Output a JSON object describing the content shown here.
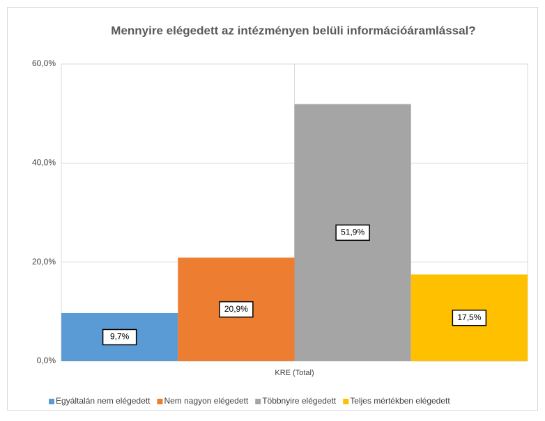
{
  "chart_data": {
    "type": "bar",
    "title": "Mennyire elégedett az intézményen belüli információáramlással?",
    "categories": [
      "KRE (Total)"
    ],
    "series": [
      {
        "name": "Egyáltalán nem elégedett",
        "color": "#5b9bd5",
        "values": [
          9.7
        ],
        "value_labels": [
          "9,7%"
        ]
      },
      {
        "name": "Nem nagyon elégedett",
        "color": "#ed7d31",
        "values": [
          20.9
        ],
        "value_labels": [
          "20,9%"
        ]
      },
      {
        "name": "Többnyire elégedett",
        "color": "#a5a5a5",
        "values": [
          51.9
        ],
        "value_labels": [
          "51,9%"
        ]
      },
      {
        "name": "Teljes mértékben elégedett",
        "color": "#ffc000",
        "values": [
          17.5
        ],
        "value_labels": [
          "17,5%"
        ]
      }
    ],
    "ylim": [
      0,
      60
    ],
    "yticks": [
      {
        "value": 0,
        "label": "0,0%"
      },
      {
        "value": 20,
        "label": "20,0%"
      },
      {
        "value": 40,
        "label": "40,0%"
      },
      {
        "value": 60,
        "label": "60,0%"
      }
    ],
    "grid": true,
    "legend": "bottom"
  }
}
